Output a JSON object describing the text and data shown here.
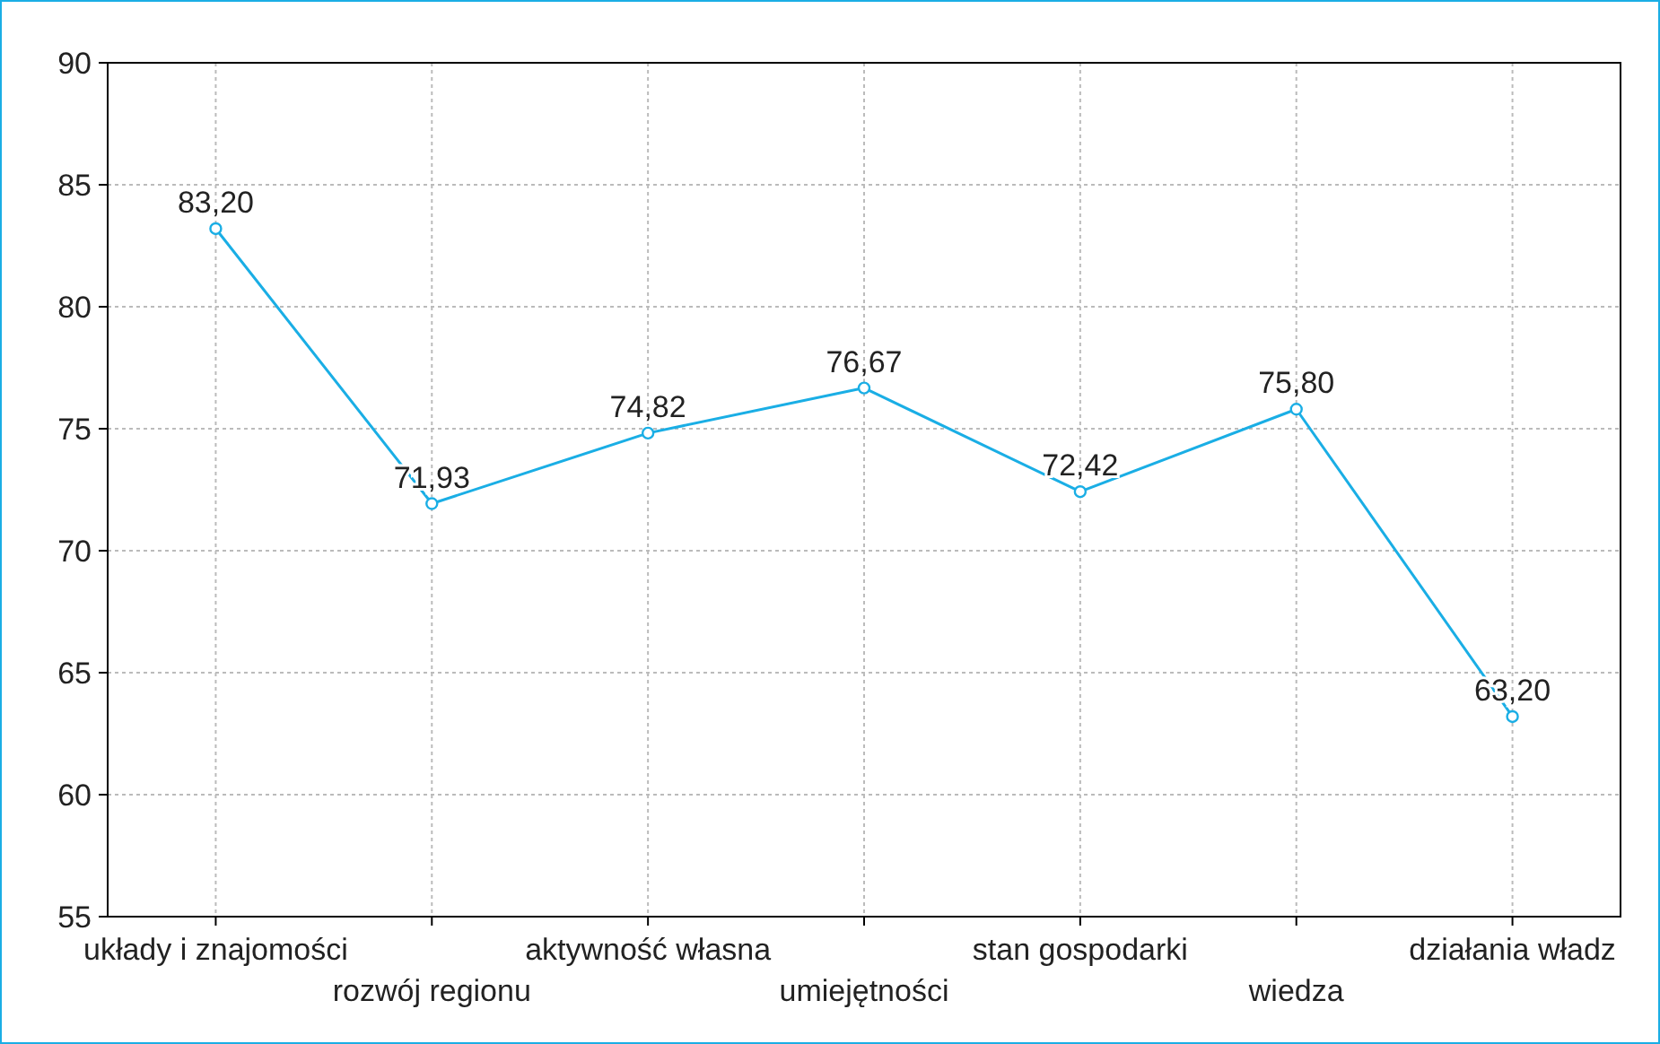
{
  "chart_data": {
    "type": "line",
    "categories": [
      "układy i znajomości",
      "rozwój regionu",
      "aktywność własna",
      "umiejętności",
      "stan gospodarki",
      "wiedza",
      "działania władz"
    ],
    "series": [
      {
        "color": "#1aaee5",
        "values": [
          83.2,
          71.93,
          74.82,
          76.67,
          72.42,
          75.8,
          63.2
        ],
        "value_labels": [
          "83,20",
          "71,93",
          "74,82",
          "76,67",
          "72,42",
          "75,80",
          "63,20"
        ]
      }
    ],
    "ylim": [
      55,
      90
    ],
    "yticks": [
      55,
      60,
      65,
      70,
      75,
      80,
      85,
      90
    ],
    "grid": true,
    "marker": "circle",
    "line_style": "solid"
  }
}
